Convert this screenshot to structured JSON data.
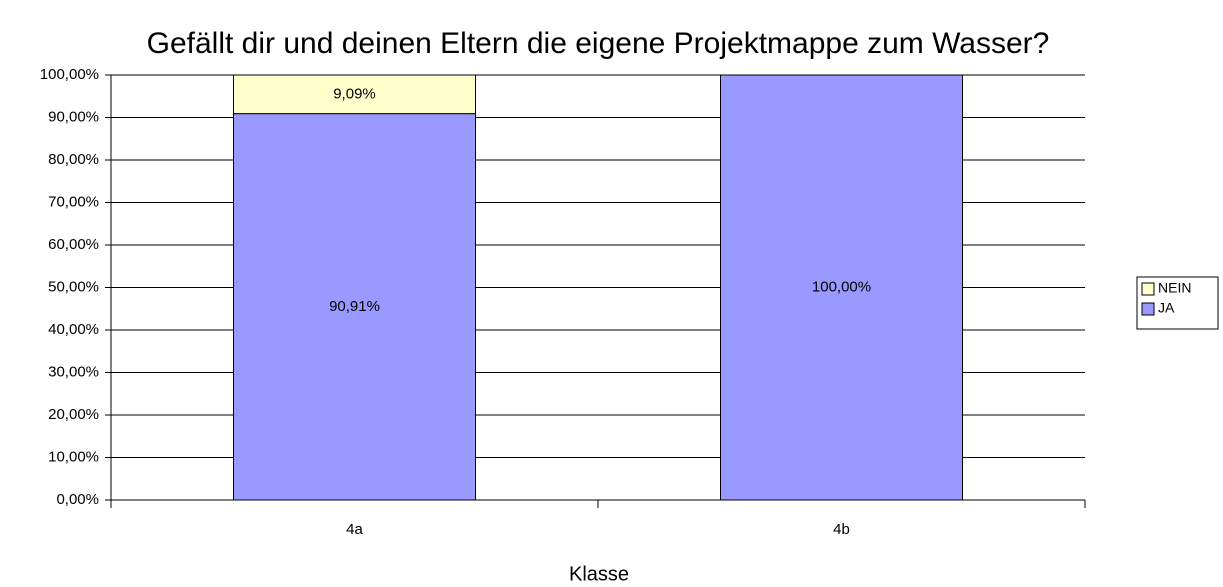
{
  "chart_data": {
    "type": "stacked_bar",
    "title": "Gefällt dir und deinen Eltern die eigene Projektmappe zum Wasser?",
    "x_label": "Klasse",
    "categories": [
      "4a",
      "4b"
    ],
    "series": [
      {
        "name": "JA",
        "color": "#9999ff",
        "values": [
          90.91,
          100
        ],
        "value_labels": [
          "90,91%",
          "100,00%"
        ]
      },
      {
        "name": "NEIN",
        "color": "#ffffcc",
        "values": [
          9.09,
          0
        ],
        "value_labels": [
          "9,09%",
          null
        ]
      }
    ],
    "ylim": [
      0,
      100
    ],
    "yticks": [
      {
        "value": 0,
        "label": "0,00%"
      },
      {
        "value": 10,
        "label": "10,00%"
      },
      {
        "value": 20,
        "label": "20,00%"
      },
      {
        "value": 30,
        "label": "30,00%"
      },
      {
        "value": 40,
        "label": "40,00%"
      },
      {
        "value": 50,
        "label": "50,00%"
      },
      {
        "value": 60,
        "label": "60,00%"
      },
      {
        "value": 70,
        "label": "70,00%"
      },
      {
        "value": 80,
        "label": "80,00%"
      },
      {
        "value": 90,
        "label": "90,00%"
      },
      {
        "value": 100,
        "label": "100,00%"
      }
    ],
    "grid": true,
    "legend": "right"
  }
}
